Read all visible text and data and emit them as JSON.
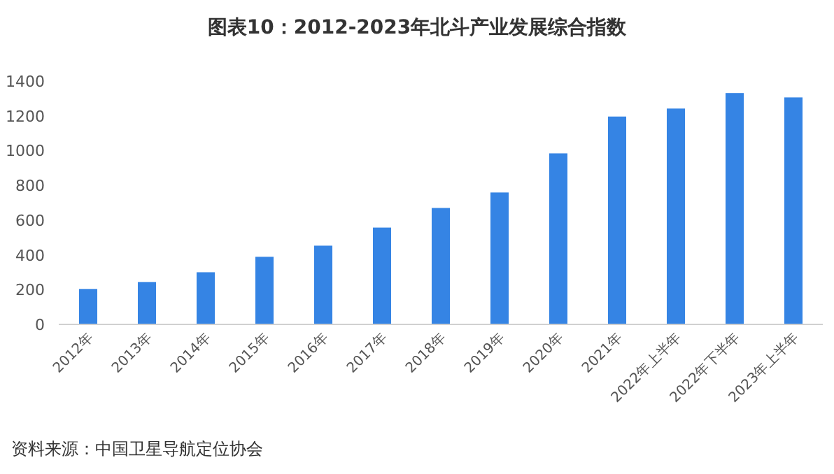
{
  "chart_data": {
    "type": "bar",
    "title": "图表10：2012-2023年北斗产业发展综合指数",
    "categories": [
      "2012年",
      "2013年",
      "2014年",
      "2015年",
      "2016年",
      "2017年",
      "2018年",
      "2019年",
      "2020年",
      "2021年",
      "2022年上半年",
      "2022年下半年",
      "2023年上半年"
    ],
    "values": [
      204,
      244,
      300,
      389,
      453,
      557,
      670,
      759,
      984,
      1196,
      1242,
      1331,
      1306
    ],
    "color": "#3584e4",
    "ylim": [
      0,
      1400
    ],
    "yticks": [
      0,
      200,
      400,
      600,
      800,
      1000,
      1200,
      1400
    ],
    "annotations": [
      "资料来源：中国卫星导航定位协会"
    ]
  }
}
